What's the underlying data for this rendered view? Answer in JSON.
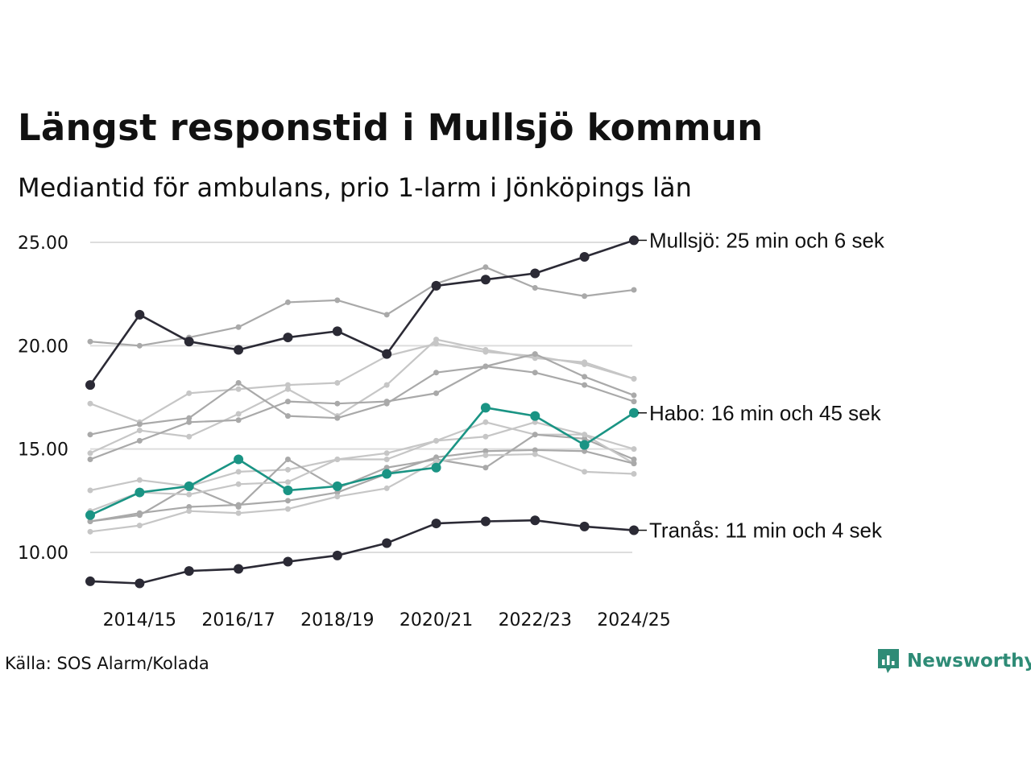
{
  "header": {
    "title": "Längst responstid i Mullsjö kommun",
    "subtitle": "Mediantid för ambulans, prio 1-larm i Jönköpings län"
  },
  "footer": {
    "source": "Källa: SOS Alarm/Kolada",
    "brand": "Newsworthy"
  },
  "colors": {
    "highlight": "#2b2a35",
    "accent": "#1a9484",
    "background_lines": [
      "#a9a9a9",
      "#c6c6c6"
    ],
    "grid": "#dddddd",
    "brand": "#2e8b76"
  },
  "chart_data": {
    "type": "line",
    "title": "Längst responstid i Mullsjö kommun",
    "xlabel": "",
    "ylabel": "",
    "ylim": [
      8.0,
      26.0
    ],
    "yticks": [
      10,
      15,
      20,
      25
    ],
    "ytick_labels": [
      "10.00",
      "15.00",
      "20.00",
      "25.00"
    ],
    "x": [
      "2013/14",
      "2014/15",
      "2015/16",
      "2016/17",
      "2017/18",
      "2018/19",
      "2019/20",
      "2020/21",
      "2021/22",
      "2022/23",
      "2023/24",
      "2024/25"
    ],
    "xtick_labels": [
      "2014/15",
      "2016/17",
      "2018/19",
      "2020/21",
      "2022/23",
      "2024/25"
    ],
    "highlighted": [
      {
        "name": "Mullsjö",
        "label": "Mullsjö: 25 min och 6 sek",
        "color": "#2b2a35",
        "values": [
          18.1,
          21.5,
          20.2,
          19.8,
          20.4,
          20.7,
          19.6,
          22.9,
          23.2,
          23.5,
          24.3,
          25.1
        ]
      },
      {
        "name": "Habo",
        "label": "Habo: 16 min och 45 sek",
        "color": "#1a9484",
        "values": [
          11.8,
          12.9,
          13.2,
          14.5,
          13.0,
          13.2,
          13.8,
          14.1,
          17.0,
          16.6,
          15.2,
          16.75
        ]
      },
      {
        "name": "Tranås",
        "label": "Tranås: 11 min och 4 sek",
        "color": "#2b2a35",
        "values": [
          8.6,
          8.5,
          9.1,
          9.2,
          9.55,
          9.85,
          10.45,
          11.4,
          11.5,
          11.55,
          11.25,
          11.07
        ]
      }
    ],
    "others": [
      {
        "values": [
          20.2,
          20.0,
          20.4,
          20.9,
          22.1,
          22.2,
          21.5,
          23.0,
          23.8,
          22.8,
          22.4,
          22.7
        ]
      },
      {
        "values": [
          14.8,
          15.9,
          15.6,
          16.7,
          17.9,
          16.6,
          18.1,
          20.3,
          19.8,
          19.4,
          19.2,
          18.4
        ]
      },
      {
        "values": [
          14.5,
          15.4,
          16.3,
          16.4,
          17.3,
          17.2,
          17.3,
          17.7,
          19.0,
          18.7,
          18.1,
          17.3
        ]
      },
      {
        "values": [
          17.2,
          16.3,
          17.7,
          17.9,
          18.1,
          18.2,
          19.5,
          20.1,
          19.7,
          19.5,
          19.1,
          18.4
        ]
      },
      {
        "values": [
          15.7,
          16.2,
          16.5,
          18.2,
          16.6,
          16.5,
          17.2,
          18.7,
          19.0,
          19.6,
          18.5,
          17.6
        ]
      },
      {
        "values": [
          13.0,
          13.5,
          13.2,
          13.9,
          14.0,
          14.5,
          14.5,
          15.4,
          16.3,
          15.7,
          15.7,
          15.0
        ]
      },
      {
        "values": [
          11.5,
          11.8,
          13.2,
          12.2,
          14.5,
          13.1,
          14.1,
          14.5,
          14.1,
          15.7,
          15.5,
          14.5
        ]
      },
      {
        "values": [
          12.0,
          12.9,
          12.8,
          13.3,
          13.4,
          14.5,
          14.8,
          15.4,
          15.6,
          16.3,
          15.7,
          14.3
        ]
      },
      {
        "values": [
          11.5,
          11.9,
          12.2,
          12.3,
          12.5,
          12.9,
          13.8,
          14.6,
          14.9,
          14.95,
          14.9,
          14.3
        ]
      },
      {
        "values": [
          11.0,
          11.3,
          12.0,
          11.9,
          12.1,
          12.7,
          13.1,
          14.4,
          14.7,
          14.75,
          13.9,
          13.8
        ]
      }
    ]
  }
}
